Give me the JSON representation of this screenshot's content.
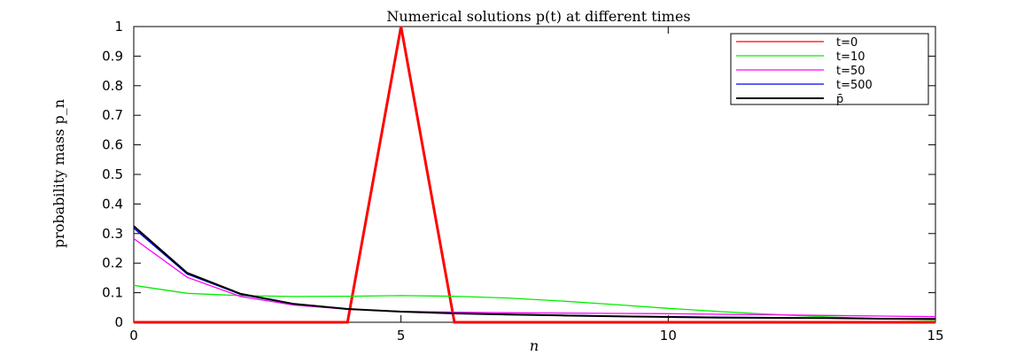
{
  "chart_data": {
    "type": "line",
    "title": "Numerical solutions p(t) at different times",
    "xlabel": "n",
    "ylabel": "probability mass p_n",
    "xlim": [
      0,
      15
    ],
    "ylim": [
      0,
      1
    ],
    "xticks": [
      "0",
      "5",
      "10",
      "15"
    ],
    "yticks": [
      "0",
      "0.1",
      "0.2",
      "0.3",
      "0.4",
      "0.5",
      "0.6",
      "0.7",
      "0.8",
      "0.9",
      "1"
    ],
    "grid": false,
    "legend_position": "top-right",
    "x": [
      0,
      1,
      2,
      3,
      4,
      5,
      6,
      7,
      8,
      9,
      10,
      11,
      12,
      13,
      14,
      15
    ],
    "series": [
      {
        "name": "t=0",
        "color": "#ff0000",
        "values": [
          0,
          0,
          0,
          0,
          0,
          1,
          0,
          0,
          0,
          0,
          0,
          0,
          0,
          0,
          0,
          0
        ]
      },
      {
        "name": "t=10",
        "color": "#00ee00",
        "values": [
          0.125,
          0.098,
          0.09,
          0.087,
          0.088,
          0.09,
          0.088,
          0.082,
          0.072,
          0.06,
          0.047,
          0.036,
          0.026,
          0.018,
          0.012,
          0.008
        ]
      },
      {
        "name": "t=50",
        "color": "#ff00ff",
        "values": [
          0.283,
          0.152,
          0.087,
          0.058,
          0.044,
          0.037,
          0.034,
          0.032,
          0.031,
          0.03,
          0.029,
          0.027,
          0.025,
          0.023,
          0.021,
          0.019
        ]
      },
      {
        "name": "t=500",
        "color": "#0000ee",
        "values": [
          0.318,
          0.163,
          0.094,
          0.061,
          0.045,
          0.036,
          0.031,
          0.027,
          0.024,
          0.021,
          0.019,
          0.017,
          0.016,
          0.014,
          0.013,
          0.012
        ]
      },
      {
        "name": "p̄",
        "color": "#000000",
        "values": [
          0.325,
          0.167,
          0.096,
          0.062,
          0.045,
          0.036,
          0.03,
          0.026,
          0.023,
          0.02,
          0.018,
          0.016,
          0.015,
          0.014,
          0.012,
          0.011
        ]
      }
    ]
  }
}
